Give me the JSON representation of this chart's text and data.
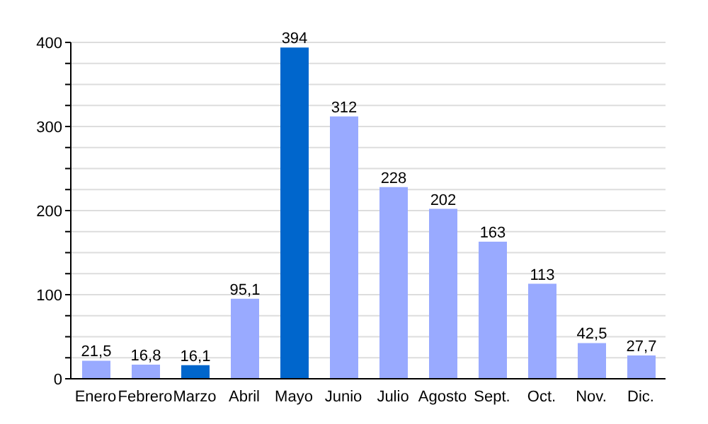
{
  "chart_data": {
    "type": "bar",
    "categories": [
      "Enero",
      "Febrero",
      "Marzo",
      "Abril",
      "Mayo",
      "Junio",
      "Julio",
      "Agosto",
      "Sept.",
      "Oct.",
      "Nov.",
      "Dic."
    ],
    "values": [
      21.5,
      16.8,
      16.1,
      95.1,
      394,
      312,
      228,
      202,
      163,
      113,
      42.5,
      27.7
    ],
    "colors": [
      "#99aaff",
      "#99aaff",
      "#0066cc",
      "#99aaff",
      "#0066cc",
      "#99aaff",
      "#99aaff",
      "#99aaff",
      "#99aaff",
      "#99aaff",
      "#99aaff",
      "#99aaff"
    ],
    "value_labels": [
      "21,5",
      "16,8",
      "16,1",
      "95,1",
      "394",
      "312",
      "228",
      "202",
      "163",
      "113",
      "42,5",
      "27,7"
    ],
    "ylim": [
      0,
      400
    ],
    "yticks": [
      0,
      {
        "value": 25,
        "label": null
      },
      {
        "value": 50,
        "label": null
      },
      {
        "value": 75,
        "label": null
      },
      100,
      {
        "value": 125,
        "label": null
      },
      {
        "value": 150,
        "label": null
      },
      {
        "value": 175,
        "label": null
      },
      200,
      {
        "value": 225,
        "label": null
      },
      {
        "value": 250,
        "label": null
      },
      {
        "value": 275,
        "label": null
      },
      300,
      {
        "value": 325,
        "label": null
      },
      {
        "value": 350,
        "label": null
      },
      {
        "value": 375,
        "label": null
      },
      400
    ],
    "grid": "y",
    "legend": false
  }
}
